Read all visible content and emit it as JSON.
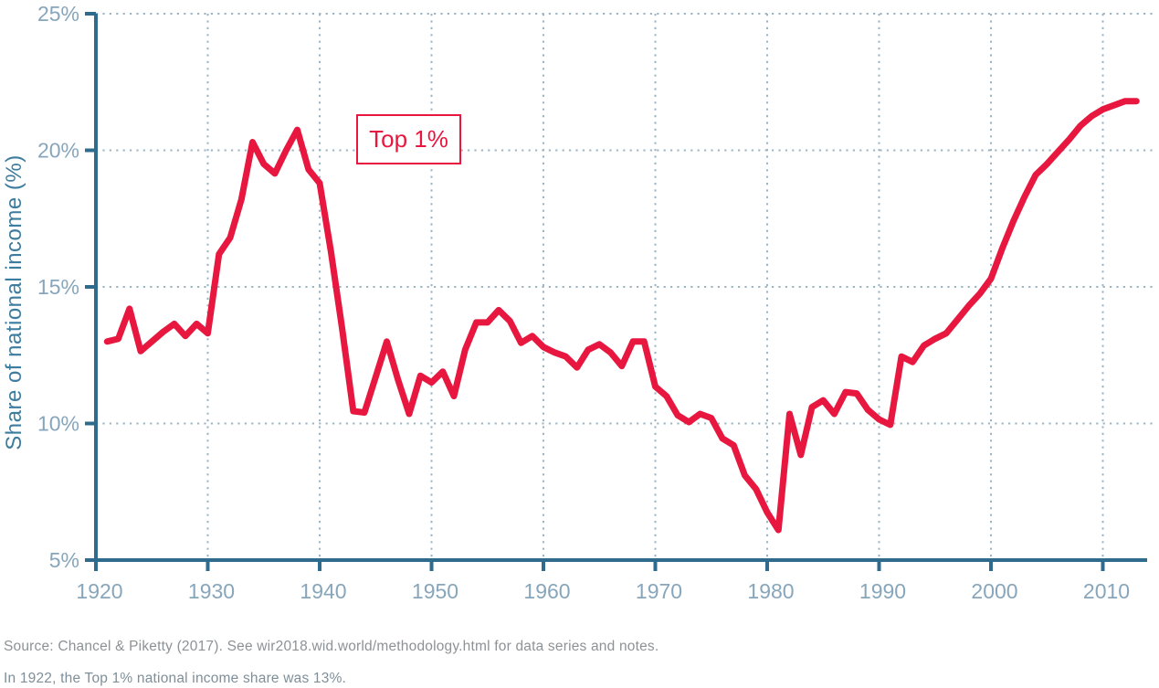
{
  "page": {
    "background": "#ffffff"
  },
  "colors": {
    "line": "#e8173f",
    "axis": "#2e6b8c",
    "tick_label": "#87a6bb",
    "axis_title": "#3d7c9e",
    "grid": "#9cb5c5",
    "annotation_border": "#e8173f",
    "annotation_text": "#e8173f",
    "source_text": "#8d9296",
    "note_text": "#7f8f99"
  },
  "y_axis": {
    "title": "Share of national income (%)",
    "tick_labels": [
      "25%",
      "20%",
      "15%",
      "10%",
      "5%"
    ],
    "tick_values": [
      25,
      20,
      15,
      10,
      5
    ]
  },
  "x_axis": {
    "tick_labels": [
      "1920",
      "1930",
      "1940",
      "1950",
      "1960",
      "1970",
      "1980",
      "1990",
      "2000",
      "2010"
    ],
    "tick_values": [
      1920,
      1930,
      1940,
      1950,
      1960,
      1970,
      1980,
      1990,
      2000,
      2010
    ]
  },
  "annotation": {
    "label": "Top 1%"
  },
  "footer": {
    "source": "Source: Chancel & Piketty (2017). See wir2018.wid.world/methodology.html for data series and notes.",
    "note": "In 1922, the Top 1% national income share was 13%."
  },
  "chart_data": {
    "type": "line",
    "title": "",
    "xlabel": "",
    "ylabel": "Share of national income (%)",
    "series_name": "Top 1%",
    "x_range": [
      1920,
      2014
    ],
    "y_range": [
      5,
      25
    ],
    "grid": "dotted",
    "legend_position": "annotation-box",
    "x": [
      1921,
      1922,
      1923,
      1924,
      1925,
      1926,
      1927,
      1928,
      1929,
      1930,
      1931,
      1932,
      1933,
      1934,
      1935,
      1936,
      1937,
      1938,
      1939,
      1940,
      1941,
      1942,
      1943,
      1944,
      1945,
      1946,
      1947,
      1948,
      1949,
      1950,
      1951,
      1952,
      1953,
      1954,
      1955,
      1956,
      1957,
      1958,
      1959,
      1960,
      1961,
      1962,
      1963,
      1964,
      1965,
      1966,
      1967,
      1968,
      1969,
      1970,
      1971,
      1972,
      1973,
      1974,
      1975,
      1976,
      1977,
      1978,
      1979,
      1980,
      1981,
      1982,
      1983,
      1984,
      1985,
      1986,
      1987,
      1988,
      1989,
      1990,
      1991,
      1992,
      1993,
      1994,
      1995,
      1996,
      1997,
      1998,
      1999,
      2000,
      2001,
      2002,
      2003,
      2004,
      2005,
      2006,
      2007,
      2008,
      2009,
      2010,
      2011,
      2012,
      2013
    ],
    "y": [
      13.0,
      13.1,
      14.2,
      12.65,
      13.0,
      13.35,
      13.65,
      13.2,
      13.65,
      13.3,
      16.2,
      16.8,
      18.2,
      20.3,
      19.5,
      19.15,
      20.0,
      20.75,
      19.3,
      18.8,
      16.3,
      13.5,
      10.45,
      10.4,
      11.7,
      13.0,
      11.6,
      10.35,
      11.75,
      11.5,
      11.9,
      11.0,
      12.7,
      13.7,
      13.7,
      14.15,
      13.75,
      12.95,
      13.2,
      12.8,
      12.6,
      12.45,
      12.05,
      12.7,
      12.9,
      12.6,
      12.1,
      13.0,
      13.0,
      11.35,
      11.0,
      10.3,
      10.05,
      10.35,
      10.2,
      9.45,
      9.2,
      8.1,
      7.6,
      6.75,
      6.1,
      10.35,
      8.85,
      10.6,
      10.85,
      10.35,
      11.15,
      11.1,
      10.5,
      10.15,
      9.95,
      12.45,
      12.25,
      12.85,
      13.1,
      13.3,
      13.8,
      14.3,
      14.75,
      15.3,
      16.4,
      17.4,
      18.3,
      19.1,
      19.5,
      19.95,
      20.4,
      20.9,
      21.25,
      21.5,
      21.65,
      21.8,
      21.8
    ]
  }
}
